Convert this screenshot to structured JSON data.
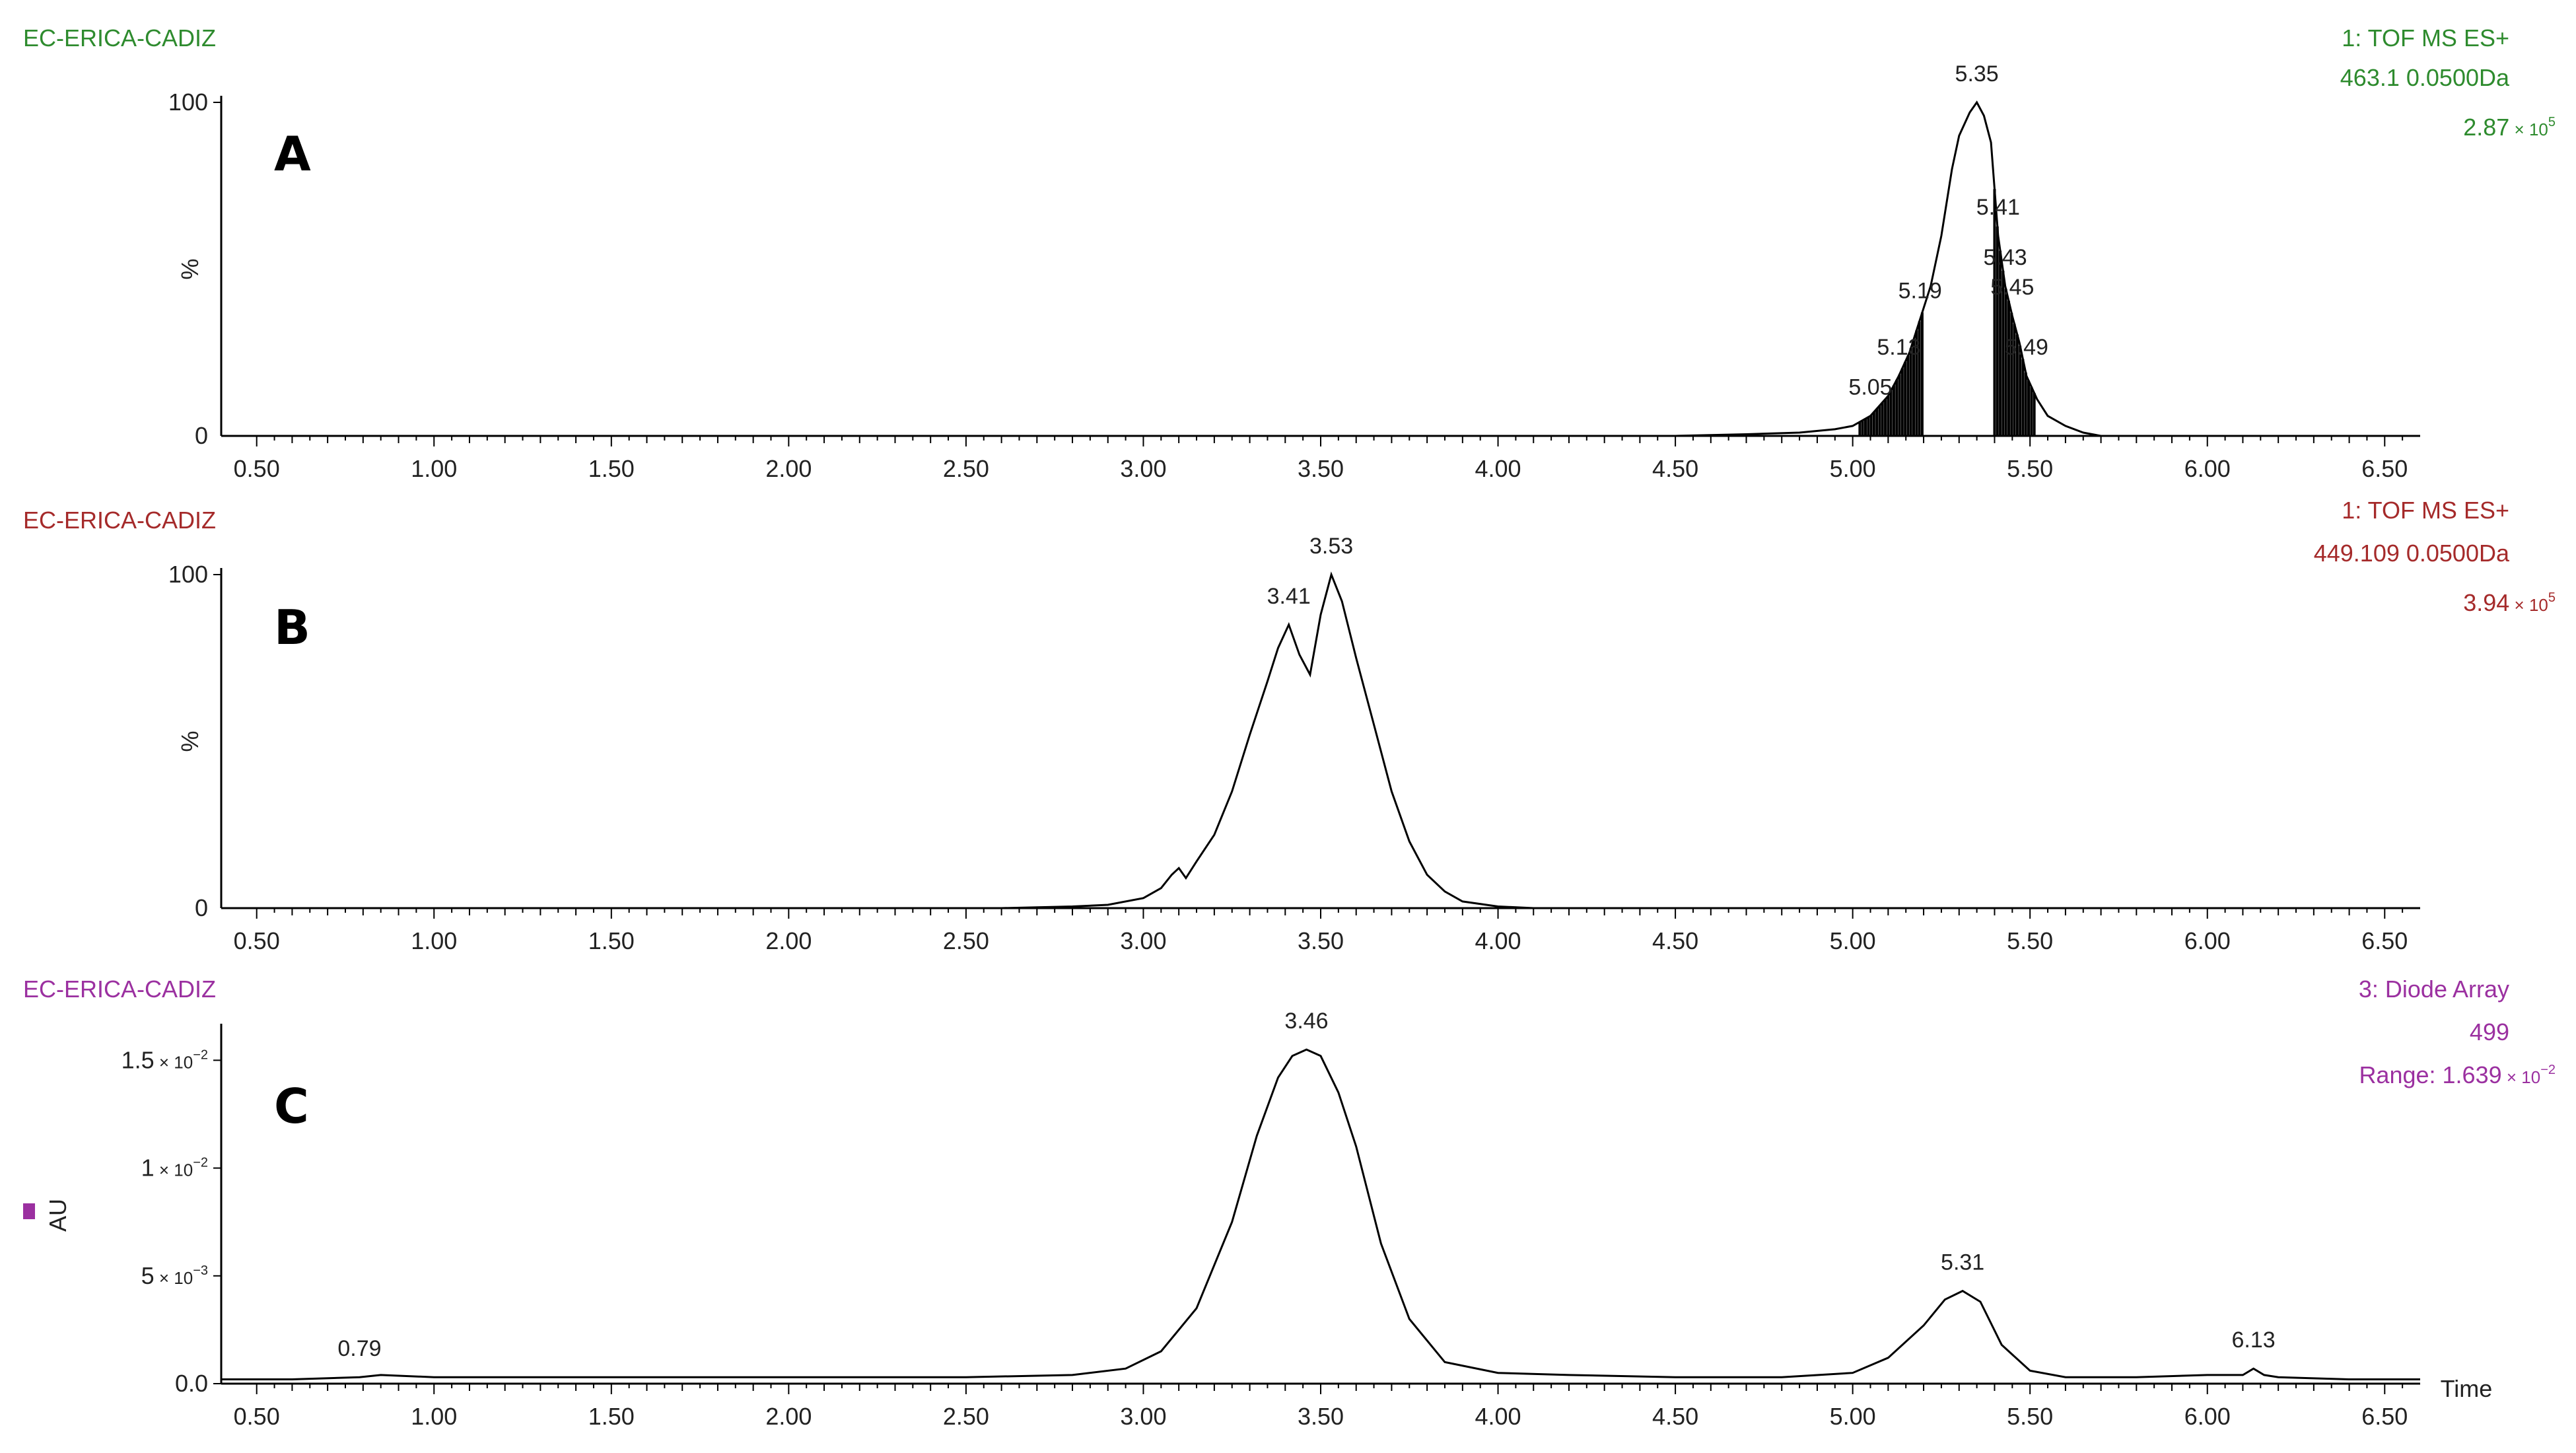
{
  "chart_data": [
    {
      "panel": "A",
      "type": "line",
      "sample": "EC-ERICA-CADIZ",
      "header": [
        "1: TOF MS ES+",
        "463.1 0.0500Da"
      ],
      "intensity_mantissa": "2.87",
      "intensity_exponent": "5",
      "color": "#2e8b2e",
      "ylabel": "%",
      "xlim": [
        0.4,
        6.6
      ],
      "ylim": [
        0,
        100
      ],
      "x_ticks": [
        "0.50",
        "1.00",
        "1.50",
        "2.00",
        "2.50",
        "3.00",
        "3.50",
        "4.00",
        "4.50",
        "5.00",
        "5.50",
        "6.00",
        "6.50"
      ],
      "y_ticks": [
        "100",
        "0"
      ],
      "peak_labels": [
        "5.05",
        "5.13",
        "5.19",
        "5.35",
        "5.41",
        "5.43",
        "5.45",
        "5.49"
      ],
      "series": [
        {
          "x": [
            0.4,
            4.5,
            4.7,
            4.85,
            4.95,
            5.0,
            5.05,
            5.1,
            5.13,
            5.16,
            5.19,
            5.22,
            5.25,
            5.28,
            5.3,
            5.33,
            5.35,
            5.37,
            5.39,
            5.41,
            5.43,
            5.45,
            5.47,
            5.49,
            5.52,
            5.55,
            5.6,
            5.65,
            5.7,
            6.6
          ],
          "y": [
            0,
            0,
            0.5,
            1,
            2,
            3,
            6,
            12,
            18,
            25,
            35,
            45,
            60,
            80,
            90,
            97,
            100,
            96,
            88,
            60,
            45,
            36,
            28,
            18,
            11,
            6,
            3,
            1,
            0,
            0
          ]
        }
      ],
      "spike_regions": [
        [
          5.02,
          5.2
        ],
        [
          5.4,
          5.52
        ]
      ]
    },
    {
      "panel": "B",
      "type": "line",
      "sample": "EC-ERICA-CADIZ",
      "header": [
        "1: TOF MS ES+",
        "449.109 0.0500Da"
      ],
      "intensity_mantissa": "3.94",
      "intensity_exponent": "5",
      "color": "#a52a2a",
      "ylabel": "%",
      "xlim": [
        0.4,
        6.6
      ],
      "ylim": [
        0,
        100
      ],
      "x_ticks": [
        "0.50",
        "1.00",
        "1.50",
        "2.00",
        "2.50",
        "3.00",
        "3.50",
        "4.00",
        "4.50",
        "5.00",
        "5.50",
        "6.00",
        "6.50"
      ],
      "y_ticks": [
        "100",
        "0"
      ],
      "peak_labels": [
        "3.41",
        "3.53"
      ],
      "series": [
        {
          "x": [
            0.4,
            2.6,
            2.8,
            2.9,
            3.0,
            3.05,
            3.08,
            3.1,
            3.12,
            3.15,
            3.2,
            3.25,
            3.3,
            3.35,
            3.38,
            3.41,
            3.44,
            3.47,
            3.5,
            3.53,
            3.56,
            3.6,
            3.65,
            3.7,
            3.75,
            3.8,
            3.85,
            3.9,
            4.0,
            4.1,
            6.6
          ],
          "y": [
            0,
            0,
            0.5,
            1,
            3,
            6,
            10,
            12,
            9,
            14,
            22,
            35,
            52,
            68,
            78,
            85,
            76,
            70,
            88,
            100,
            92,
            75,
            55,
            35,
            20,
            10,
            5,
            2,
            0.5,
            0,
            0
          ]
        }
      ]
    },
    {
      "panel": "C",
      "type": "line",
      "sample": "EC-ERICA-CADIZ",
      "header": [
        "3: Diode Array",
        "499"
      ],
      "range_label": "Range: 1.639",
      "range_exponent": "−2",
      "color": "#9b30a0",
      "ylabel": "AU",
      "xlabel": "Time",
      "xlim": [
        0.4,
        6.6
      ],
      "ylim": [
        0,
        0.01639
      ],
      "x_ticks": [
        "0.50",
        "1.00",
        "1.50",
        "2.00",
        "2.50",
        "3.00",
        "3.50",
        "4.00",
        "4.50",
        "5.00",
        "5.50",
        "6.00",
        "6.50"
      ],
      "y_ticks": [
        {
          "value": 0.015,
          "mantissa": "1.5",
          "exp": "−2"
        },
        {
          "value": 0.01,
          "mantissa": "1",
          "exp": "−2"
        },
        {
          "value": 0.005,
          "mantissa": "5",
          "exp": "−3"
        },
        {
          "value": 0,
          "plain": "0.0"
        }
      ],
      "peak_labels": [
        "0.79",
        "3.46",
        "5.31",
        "6.13"
      ],
      "series": [
        {
          "x": [
            0.4,
            0.6,
            0.79,
            0.85,
            1.0,
            1.5,
            2.0,
            2.5,
            2.8,
            2.95,
            3.05,
            3.15,
            3.25,
            3.32,
            3.38,
            3.42,
            3.46,
            3.5,
            3.55,
            3.6,
            3.67,
            3.75,
            3.85,
            4.0,
            4.2,
            4.5,
            4.8,
            5.0,
            5.1,
            5.2,
            5.26,
            5.31,
            5.36,
            5.42,
            5.5,
            5.6,
            5.7,
            5.8,
            6.0,
            6.1,
            6.13,
            6.16,
            6.2,
            6.4,
            6.6
          ],
          "y": [
            0.0002,
            0.0002,
            0.0003,
            0.0004,
            0.0003,
            0.0003,
            0.0003,
            0.0003,
            0.0004,
            0.0007,
            0.0015,
            0.0035,
            0.0075,
            0.0115,
            0.0142,
            0.0152,
            0.0155,
            0.0152,
            0.0135,
            0.011,
            0.0065,
            0.003,
            0.001,
            0.0005,
            0.0004,
            0.0003,
            0.0003,
            0.0005,
            0.0012,
            0.0027,
            0.0039,
            0.0043,
            0.0038,
            0.0018,
            0.0006,
            0.0003,
            0.0003,
            0.0003,
            0.0004,
            0.0004,
            0.0007,
            0.0004,
            0.0003,
            0.0002,
            0.0002
          ]
        }
      ]
    }
  ]
}
